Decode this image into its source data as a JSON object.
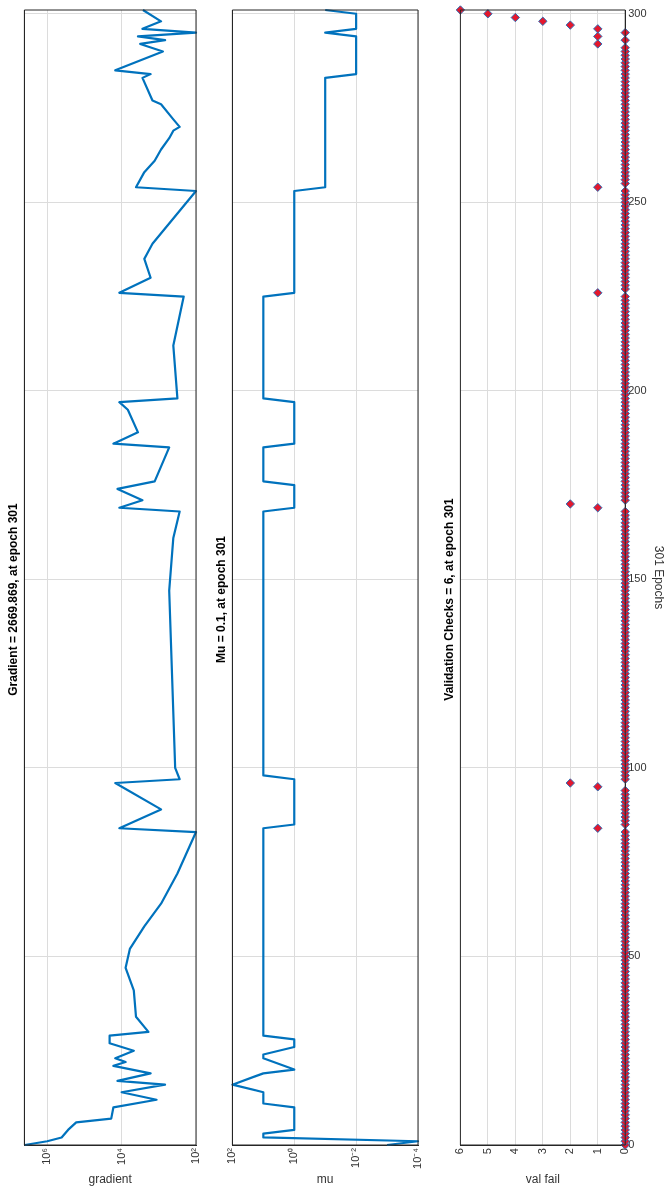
{
  "chart_data": [
    {
      "type": "line",
      "title": "Gradient = 2669.869, at epoch 301",
      "xlabel": "gradient",
      "color": "#0072bd",
      "marker": "none",
      "log": "x",
      "grid": true,
      "tick_labels": "x",
      "ylim": [
        0,
        301
      ],
      "yticks": [
        0,
        50,
        100,
        150,
        200,
        250,
        300
      ],
      "xlim": [
        4100000,
        100
      ],
      "xticks": [
        {
          "value": 100,
          "label": "10²"
        },
        {
          "value": 10000,
          "label": "10⁴"
        },
        {
          "value": 1000000,
          "label": "10⁶"
        }
      ],
      "values": [
        0,
        1,
        2,
        4,
        5,
        6,
        7,
        10,
        12,
        14,
        16,
        17,
        19,
        21,
        22,
        23,
        25,
        27,
        29,
        30,
        34,
        41,
        47,
        52,
        58,
        64,
        72,
        83,
        84,
        86,
        89,
        96,
        97,
        100,
        147,
        161,
        168,
        169,
        171,
        174,
        176,
        185,
        186,
        189,
        195,
        197,
        198,
        212,
        225,
        226,
        230,
        235,
        239,
        253,
        254,
        258,
        261,
        264,
        267,
        269,
        270,
        272,
        276,
        277,
        283,
        284,
        285,
        290,
        292,
        293,
        294,
        295,
        296,
        298,
        301
      ],
      "x": [
        4000000,
        1000000,
        410000,
        275000,
        214000,
        166000,
        19000,
        16600,
        1150,
        10000,
        680,
        12900,
        1660,
        16600,
        7800,
        14800,
        4700,
        21000,
        21000,
        1900,
        4100,
        4700,
        7800,
        6000,
        2450,
        870,
        316,
        100,
        11500,
        4100,
        870,
        14800,
        275,
        363,
        525,
        407,
        275,
        11500,
        2750,
        12900,
        1290,
        525,
        16600,
        3630,
        6800,
        11500,
        316,
        407,
        214,
        11500,
        1660,
        2450,
        1480,
        100,
        4100,
        2450,
        1290,
        870,
        525,
        407,
        275,
        407,
        870,
        1480,
        2750,
        1660,
        14800,
        776,
        3160,
        676,
        3630,
        100,
        2750,
        870,
        2669.869
      ]
    },
    {
      "type": "line",
      "title": "Mu = 0.1, at epoch 301",
      "xlabel": "mu",
      "color": "#0072bd",
      "marker": "none",
      "log": "x",
      "grid": true,
      "tick_labels": "x",
      "ylim": [
        0,
        301
      ],
      "yticks": [
        0,
        50,
        100,
        150,
        200,
        250,
        300
      ],
      "xlim": [
        100,
        0.0001
      ],
      "xticks": [
        {
          "value": 0.0001,
          "label": "10⁻⁴"
        },
        {
          "value": 0.01,
          "label": "10⁻²"
        },
        {
          "value": 1,
          "label": "10⁰"
        },
        {
          "value": 100,
          "label": "10²"
        }
      ],
      "values": [
        0,
        1,
        2,
        3,
        4,
        10,
        11,
        14,
        16,
        19,
        20,
        23,
        24,
        26,
        28,
        29,
        84,
        85,
        97,
        98,
        168,
        169,
        175,
        176,
        185,
        186,
        197,
        198,
        225,
        226,
        253,
        254,
        283,
        284,
        294,
        295,
        296,
        300,
        301
      ],
      "x": [
        0.001,
        0.0001,
        10,
        10,
        1,
        1,
        10,
        10,
        100,
        10,
        1,
        10,
        10,
        1,
        1,
        10,
        10,
        1,
        1,
        10,
        10,
        1,
        1,
        10,
        10,
        1,
        1,
        10,
        10,
        1,
        1,
        0.1,
        0.1,
        0.01,
        0.01,
        0.1,
        0.01,
        0.01,
        0.1
      ]
    },
    {
      "type": "scatter",
      "title": "Validation Checks = 6, at epoch 301",
      "ylabel": "301 Epochs",
      "xlabel": "val fail",
      "color": "#e3182d",
      "marker": "diamond",
      "grid": true,
      "ylim": [
        0,
        301
      ],
      "yticks": [
        0,
        50,
        100,
        150,
        200,
        250,
        300
      ],
      "xlim": [
        6,
        0
      ],
      "xticks": [
        0,
        1,
        2,
        3,
        4,
        5,
        6
      ],
      "values": [
        0,
        1,
        2,
        3,
        4,
        5,
        6,
        7,
        8,
        9,
        10,
        11,
        12,
        13,
        14,
        15,
        16,
        17,
        18,
        19,
        20,
        21,
        22,
        23,
        24,
        25,
        26,
        27,
        28,
        29,
        30,
        31,
        32,
        33,
        34,
        35,
        36,
        37,
        38,
        39,
        40,
        41,
        42,
        43,
        44,
        45,
        46,
        47,
        48,
        49,
        50,
        51,
        52,
        53,
        54,
        55,
        56,
        57,
        58,
        59,
        60,
        61,
        62,
        63,
        64,
        65,
        66,
        67,
        68,
        69,
        70,
        71,
        72,
        73,
        74,
        75,
        76,
        77,
        78,
        79,
        80,
        81,
        82,
        83,
        84,
        85,
        86,
        87,
        88,
        89,
        90,
        91,
        92,
        93,
        94,
        95,
        96,
        97,
        98,
        99,
        100,
        101,
        102,
        103,
        104,
        105,
        106,
        107,
        108,
        109,
        110,
        111,
        112,
        113,
        114,
        115,
        116,
        117,
        118,
        119,
        120,
        121,
        122,
        123,
        124,
        125,
        126,
        127,
        128,
        129,
        130,
        131,
        132,
        133,
        134,
        135,
        136,
        137,
        138,
        139,
        140,
        141,
        142,
        143,
        144,
        145,
        146,
        147,
        148,
        149,
        150,
        151,
        152,
        153,
        154,
        155,
        156,
        157,
        158,
        159,
        160,
        161,
        162,
        163,
        164,
        165,
        166,
        167,
        168,
        169,
        170,
        171,
        172,
        173,
        174,
        175,
        176,
        177,
        178,
        179,
        180,
        181,
        182,
        183,
        184,
        185,
        186,
        187,
        188,
        189,
        190,
        191,
        192,
        193,
        194,
        195,
        196,
        197,
        198,
        199,
        200,
        201,
        202,
        203,
        204,
        205,
        206,
        207,
        208,
        209,
        210,
        211,
        212,
        213,
        214,
        215,
        216,
        217,
        218,
        219,
        220,
        221,
        222,
        223,
        224,
        225,
        226,
        227,
        228,
        229,
        230,
        231,
        232,
        233,
        234,
        235,
        236,
        237,
        238,
        239,
        240,
        241,
        242,
        243,
        244,
        245,
        246,
        247,
        248,
        249,
        250,
        251,
        252,
        253,
        254,
        255,
        256,
        257,
        258,
        259,
        260,
        261,
        262,
        263,
        264,
        265,
        266,
        267,
        268,
        269,
        270,
        271,
        272,
        273,
        274,
        275,
        276,
        277,
        278,
        279,
        280,
        281,
        282,
        283,
        284,
        285,
        286,
        287,
        288,
        289,
        290,
        291,
        292,
        293,
        294,
        295,
        296,
        297,
        298,
        299,
        300,
        301
      ],
      "x": [
        0,
        0,
        0,
        0,
        0,
        0,
        0,
        0,
        0,
        0,
        0,
        0,
        0,
        0,
        0,
        0,
        0,
        0,
        0,
        0,
        0,
        0,
        0,
        0,
        0,
        0,
        0,
        0,
        0,
        0,
        0,
        0,
        0,
        0,
        0,
        0,
        0,
        0,
        0,
        0,
        0,
        0,
        0,
        0,
        0,
        0,
        0,
        0,
        0,
        0,
        0,
        0,
        0,
        0,
        0,
        0,
        0,
        0,
        0,
        0,
        0,
        0,
        0,
        0,
        0,
        0,
        0,
        0,
        0,
        0,
        0,
        0,
        0,
        0,
        0,
        0,
        0,
        0,
        0,
        0,
        0,
        0,
        0,
        0,
        1,
        0,
        0,
        0,
        0,
        0,
        0,
        0,
        0,
        0,
        0,
        1,
        2,
        0,
        0,
        0,
        0,
        0,
        0,
        0,
        0,
        0,
        0,
        0,
        0,
        0,
        0,
        0,
        0,
        0,
        0,
        0,
        0,
        0,
        0,
        0,
        0,
        0,
        0,
        0,
        0,
        0,
        0,
        0,
        0,
        0,
        0,
        0,
        0,
        0,
        0,
        0,
        0,
        0,
        0,
        0,
        0,
        0,
        0,
        0,
        0,
        0,
        0,
        0,
        0,
        0,
        0,
        0,
        0,
        0,
        0,
        0,
        0,
        0,
        0,
        0,
        0,
        0,
        0,
        0,
        0,
        0,
        0,
        0,
        0,
        1,
        2,
        0,
        0,
        0,
        0,
        0,
        0,
        0,
        0,
        0,
        0,
        0,
        0,
        0,
        0,
        0,
        0,
        0,
        0,
        0,
        0,
        0,
        0,
        0,
        0,
        0,
        0,
        0,
        0,
        0,
        0,
        0,
        0,
        0,
        0,
        0,
        0,
        0,
        0,
        0,
        0,
        0,
        0,
        0,
        0,
        0,
        0,
        0,
        0,
        0,
        0,
        0,
        0,
        0,
        0,
        0,
        1,
        0,
        0,
        0,
        0,
        0,
        0,
        0,
        0,
        0,
        0,
        0,
        0,
        0,
        0,
        0,
        0,
        0,
        0,
        0,
        0,
        0,
        0,
        0,
        0,
        0,
        0,
        0,
        1,
        0,
        0,
        0,
        0,
        0,
        0,
        0,
        0,
        0,
        0,
        0,
        0,
        0,
        0,
        0,
        0,
        0,
        0,
        0,
        0,
        0,
        0,
        0,
        0,
        0,
        0,
        0,
        0,
        0,
        0,
        0,
        0,
        0,
        0,
        0,
        0,
        0,
        1,
        0,
        1,
        0,
        1,
        2,
        3,
        4,
        5,
        6
      ]
    }
  ]
}
